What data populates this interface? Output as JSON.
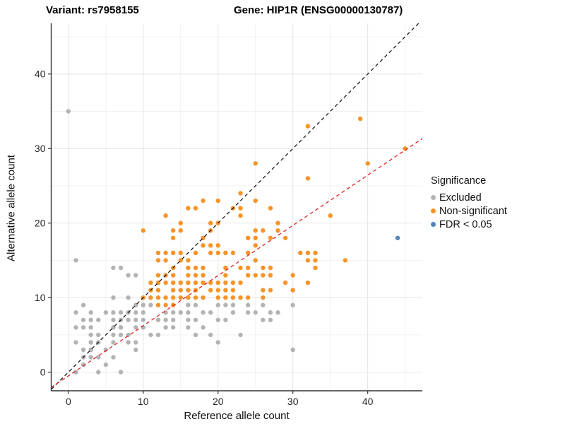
{
  "header": {
    "variant_title": "Variant: rs7958155",
    "gene_title": "Gene: HIP1R (ENSG00000130787)"
  },
  "axes": {
    "x_label": "Reference allele count",
    "y_label": "Alternative allele count",
    "x_ticks": [
      0,
      10,
      20,
      30,
      40
    ],
    "y_ticks": [
      0,
      10,
      20,
      30,
      40
    ]
  },
  "legend": {
    "title": "Significance",
    "items": [
      {
        "label": "Excluded",
        "color": "#b3b3b3"
      },
      {
        "label": "Non-significant",
        "color": "#f79428"
      },
      {
        "label": "FDR < 0.05",
        "color": "#5585b5"
      }
    ]
  },
  "chart_data": {
    "type": "scatter",
    "title": "Variant: rs7958155 | Gene: HIP1R (ENSG00000130787)",
    "xlabel": "Reference allele count",
    "ylabel": "Alternative allele count",
    "xlim": [
      -2.3,
      47.3
    ],
    "ylim": [
      -2.5,
      46.8
    ],
    "grid": {
      "major": [
        0,
        10,
        20,
        30,
        40
      ],
      "minor": [
        5,
        15,
        25,
        35,
        45
      ]
    },
    "legend_position": "right",
    "colors": {
      "excluded": "#b3b3b3",
      "non_significant": "#f79428",
      "fdr": "#5585b5",
      "identity_line": "#1a1a1a",
      "fit_line": "#e12120",
      "grid_major": "#e4e4e4",
      "grid_minor": "#f1f1f1",
      "axis_line": "#333333",
      "tick_text": "#262626"
    },
    "lines": [
      {
        "name": "identity",
        "slope": 1,
        "intercept": 0,
        "color": "#1a1a1a",
        "dash": "5,4"
      },
      {
        "name": "fit",
        "slope": 0.673,
        "intercept": -0.5,
        "color": "#e12120",
        "dash": "5,4"
      }
    ],
    "series": [
      {
        "name": "Excluded",
        "color": "#b3b3b3",
        "points": [
          [
            0,
            35
          ],
          [
            1,
            15
          ],
          [
            6,
            14
          ],
          [
            7,
            14
          ],
          [
            8,
            13
          ],
          [
            9,
            13
          ],
          [
            6,
            10
          ],
          [
            8,
            10
          ],
          [
            2,
            9
          ],
          [
            9,
            9
          ],
          [
            10,
            9
          ],
          [
            11,
            9
          ],
          [
            16,
            9
          ],
          [
            17,
            9
          ],
          [
            20,
            9
          ],
          [
            21,
            9
          ],
          [
            22,
            9
          ],
          [
            24,
            9
          ],
          [
            26,
            9
          ],
          [
            30,
            9
          ],
          [
            1,
            8
          ],
          [
            3,
            8
          ],
          [
            5,
            8
          ],
          [
            6,
            8
          ],
          [
            7,
            8
          ],
          [
            8,
            8
          ],
          [
            9,
            8
          ],
          [
            10,
            8
          ],
          [
            13,
            8
          ],
          [
            14,
            8
          ],
          [
            15,
            8
          ],
          [
            16,
            8
          ],
          [
            18,
            8
          ],
          [
            19,
            8
          ],
          [
            22,
            8
          ],
          [
            24,
            8
          ],
          [
            25,
            8
          ],
          [
            27,
            8
          ],
          [
            28,
            8
          ],
          [
            2,
            7
          ],
          [
            3,
            7
          ],
          [
            4,
            7
          ],
          [
            6,
            7
          ],
          [
            7,
            7
          ],
          [
            8,
            7
          ],
          [
            9,
            7
          ],
          [
            10,
            7
          ],
          [
            12,
            7
          ],
          [
            13,
            7
          ],
          [
            14,
            7
          ],
          [
            16,
            7
          ],
          [
            17,
            7
          ],
          [
            20,
            7
          ],
          [
            21,
            7
          ],
          [
            26,
            7
          ],
          [
            27,
            7
          ],
          [
            1,
            6
          ],
          [
            2,
            6
          ],
          [
            3,
            6
          ],
          [
            6,
            6
          ],
          [
            7,
            6
          ],
          [
            9,
            6
          ],
          [
            10,
            6
          ],
          [
            13,
            6
          ],
          [
            14,
            6
          ],
          [
            16,
            6
          ],
          [
            18,
            6
          ],
          [
            3,
            5
          ],
          [
            4,
            5
          ],
          [
            6,
            5
          ],
          [
            7,
            5
          ],
          [
            8,
            5
          ],
          [
            11,
            5
          ],
          [
            12,
            5
          ],
          [
            17,
            5
          ],
          [
            19,
            5
          ],
          [
            23,
            5
          ],
          [
            1,
            4
          ],
          [
            3,
            4
          ],
          [
            4,
            4
          ],
          [
            6,
            4
          ],
          [
            8,
            4
          ],
          [
            9,
            4
          ],
          [
            20,
            4
          ],
          [
            2,
            3
          ],
          [
            3,
            3
          ],
          [
            5,
            3
          ],
          [
            9,
            3
          ],
          [
            30,
            3
          ],
          [
            2,
            2
          ],
          [
            3,
            2
          ],
          [
            4,
            2
          ],
          [
            6,
            2
          ],
          [
            2,
            1
          ],
          [
            5,
            1
          ],
          [
            1,
            0
          ],
          [
            4,
            0
          ],
          [
            7,
            0
          ]
        ]
      },
      {
        "name": "Non-significant",
        "color": "#f79428",
        "points": [
          [
            12,
            9
          ],
          [
            13,
            9
          ],
          [
            14,
            9
          ],
          [
            10,
            10
          ],
          [
            11,
            10
          ],
          [
            12,
            10
          ],
          [
            13,
            10
          ],
          [
            14,
            10
          ],
          [
            15,
            10
          ],
          [
            16,
            10
          ],
          [
            17,
            10
          ],
          [
            18,
            10
          ],
          [
            20,
            10
          ],
          [
            21,
            10
          ],
          [
            22,
            10
          ],
          [
            23,
            10
          ],
          [
            24,
            10
          ],
          [
            26,
            10
          ],
          [
            11,
            11
          ],
          [
            12,
            11
          ],
          [
            14,
            11
          ],
          [
            15,
            11
          ],
          [
            16,
            11
          ],
          [
            17,
            11
          ],
          [
            19,
            11
          ],
          [
            20,
            11
          ],
          [
            21,
            11
          ],
          [
            22,
            11
          ],
          [
            26,
            11
          ],
          [
            27,
            11
          ],
          [
            30,
            11
          ],
          [
            11,
            12
          ],
          [
            12,
            12
          ],
          [
            13,
            12
          ],
          [
            14,
            12
          ],
          [
            15,
            12
          ],
          [
            16,
            12
          ],
          [
            17,
            12
          ],
          [
            18,
            12
          ],
          [
            19,
            12
          ],
          [
            20,
            12
          ],
          [
            21,
            12
          ],
          [
            22,
            12
          ],
          [
            23,
            12
          ],
          [
            29,
            12
          ],
          [
            32,
            12
          ],
          [
            12,
            13
          ],
          [
            13,
            13
          ],
          [
            14,
            13
          ],
          [
            16,
            13
          ],
          [
            17,
            13
          ],
          [
            18,
            13
          ],
          [
            21,
            13
          ],
          [
            24,
            13
          ],
          [
            25,
            13
          ],
          [
            26,
            13
          ],
          [
            27,
            13
          ],
          [
            30,
            13
          ],
          [
            14,
            14
          ],
          [
            16,
            14
          ],
          [
            17,
            14
          ],
          [
            18,
            14
          ],
          [
            21,
            14
          ],
          [
            23,
            14
          ],
          [
            24,
            14
          ],
          [
            26,
            14
          ],
          [
            27,
            14
          ],
          [
            33,
            14
          ],
          [
            12,
            15
          ],
          [
            13,
            15
          ],
          [
            15,
            15
          ],
          [
            16,
            15
          ],
          [
            25,
            15
          ],
          [
            32,
            15
          ],
          [
            33,
            15
          ],
          [
            37,
            15
          ],
          [
            12,
            16
          ],
          [
            13,
            16
          ],
          [
            14,
            16
          ],
          [
            15,
            16
          ],
          [
            17,
            16
          ],
          [
            19,
            16
          ],
          [
            20,
            16
          ],
          [
            21,
            16
          ],
          [
            22,
            16
          ],
          [
            24,
            16
          ],
          [
            31,
            16
          ],
          [
            32,
            16
          ],
          [
            33,
            16
          ],
          [
            18,
            17
          ],
          [
            19,
            17
          ],
          [
            20,
            17
          ],
          [
            25,
            17
          ],
          [
            14,
            18
          ],
          [
            18,
            18
          ],
          [
            24,
            18
          ],
          [
            25,
            18
          ],
          [
            27,
            18
          ],
          [
            29,
            18
          ],
          [
            10,
            19
          ],
          [
            14,
            19
          ],
          [
            15,
            19
          ],
          [
            19,
            19
          ],
          [
            25,
            19
          ],
          [
            26,
            19
          ],
          [
            28,
            19
          ],
          [
            15,
            20
          ],
          [
            19,
            20
          ],
          [
            20,
            20
          ],
          [
            28,
            20
          ],
          [
            13,
            21
          ],
          [
            23,
            21
          ],
          [
            35,
            21
          ],
          [
            16,
            22
          ],
          [
            17,
            22
          ],
          [
            22,
            22
          ],
          [
            23,
            22
          ],
          [
            27,
            22
          ],
          [
            18,
            23
          ],
          [
            20,
            23
          ],
          [
            25,
            23
          ],
          [
            23,
            24
          ],
          [
            32,
            26
          ],
          [
            25,
            28
          ],
          [
            40,
            28
          ],
          [
            45,
            30
          ],
          [
            32,
            33
          ],
          [
            39,
            34
          ]
        ]
      },
      {
        "name": "FDR < 0.05",
        "color": "#5585b5",
        "points": [
          [
            44,
            18
          ]
        ]
      }
    ]
  }
}
